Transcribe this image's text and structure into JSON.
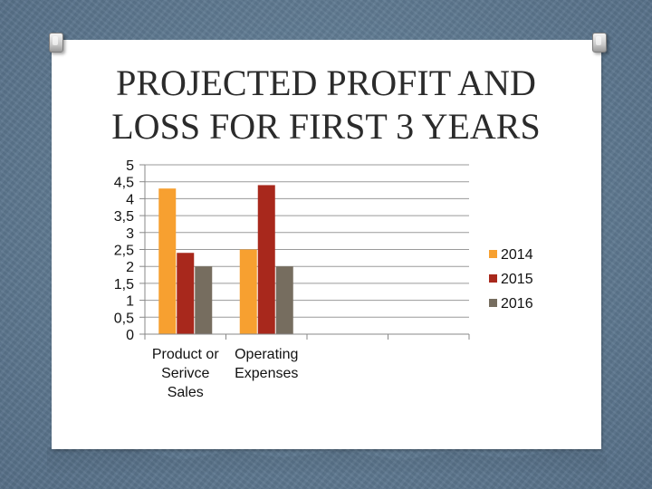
{
  "slide": {
    "title_line1": "PROJECTED PROFIT AND",
    "title_line2": "LOSS FOR FIRST 3 YEARS"
  },
  "chart_data": {
    "type": "bar",
    "categories": [
      "Product or Serivce Sales",
      "Operating Expenses",
      "",
      ""
    ],
    "category_label_lines": [
      [
        "Product or",
        "Serivce",
        "Sales"
      ],
      [
        "Operating",
        "Expenses"
      ],
      [],
      []
    ],
    "series": [
      {
        "name": "2014",
        "values": [
          4.3,
          2.5,
          null,
          null
        ],
        "color": "#f7a030"
      },
      {
        "name": "2015",
        "values": [
          2.4,
          4.4,
          null,
          null
        ],
        "color": "#a8281c"
      },
      {
        "name": "2016",
        "values": [
          2.0,
          2.0,
          null,
          null
        ],
        "color": "#766d5f"
      }
    ],
    "yticks": [
      "0",
      "0,5",
      "1",
      "1,5",
      "2",
      "2,5",
      "3",
      "3,5",
      "4",
      "4,5",
      "5"
    ],
    "ylim": [
      0,
      5
    ],
    "grid": "horizontal",
    "legend_position": "right",
    "title": "",
    "xlabel": "",
    "ylabel": ""
  }
}
